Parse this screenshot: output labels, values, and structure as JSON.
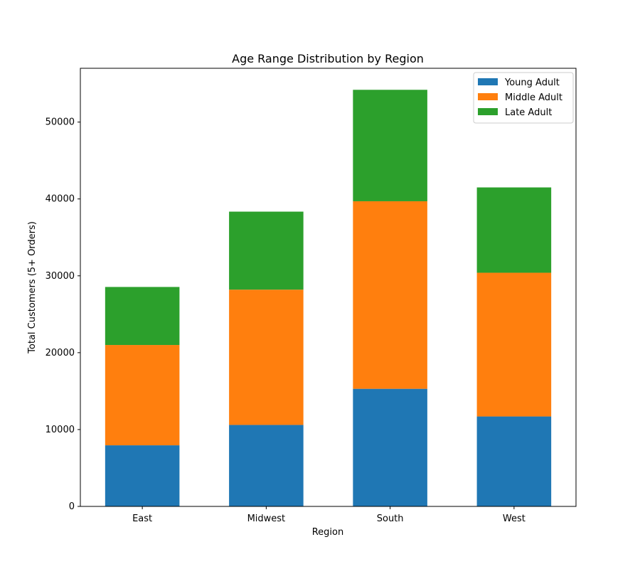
{
  "chart_data": {
    "type": "bar",
    "stacked": true,
    "title": "Age Range Distribution by Region",
    "xlabel": "Region",
    "ylabel": "Total Customers (5+ Orders)",
    "categories": [
      "East",
      "Midwest",
      "South",
      "West"
    ],
    "series": [
      {
        "name": "Young Adult",
        "color": "#1f77b4",
        "values": [
          7950,
          10600,
          15300,
          11700
        ]
      },
      {
        "name": "Middle Adult",
        "color": "#ff7f0e",
        "values": [
          13050,
          17600,
          24400,
          18700
        ]
      },
      {
        "name": "Late Adult",
        "color": "#2ca02c",
        "values": [
          7550,
          10150,
          14500,
          11100
        ]
      }
    ],
    "yticks": [
      0,
      10000,
      20000,
      30000,
      40000,
      50000
    ],
    "ylim": [
      0,
      57000
    ],
    "grid": false,
    "legend_position": "top-right"
  }
}
